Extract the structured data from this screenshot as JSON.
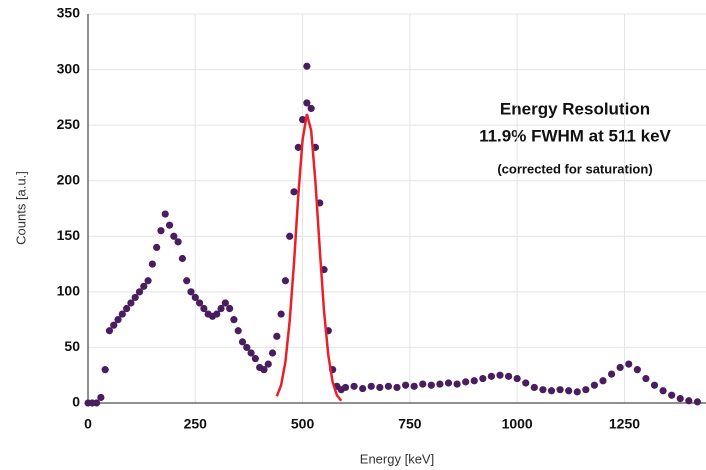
{
  "chart_data": {
    "type": "scatter",
    "xlabel": "Energy [keV]",
    "ylabel": "Counts [a.u.]",
    "annotations": [
      "Energy Resolution",
      "11.9% FWHM at 511 keV",
      "(corrected for saturation)"
    ],
    "xlim": [
      0,
      1440
    ],
    "ylim": [
      0,
      350
    ],
    "xticks": [
      0,
      250,
      500,
      750,
      1000,
      1250
    ],
    "yticks": [
      0,
      50,
      100,
      150,
      200,
      250,
      300,
      350
    ],
    "grid": true,
    "series": [
      {
        "type": "scatter",
        "color": "#4a1d5e",
        "x": [
          0,
          10,
          20,
          30,
          40,
          50,
          60,
          70,
          80,
          90,
          100,
          110,
          120,
          130,
          140,
          150,
          160,
          170,
          180,
          190,
          200,
          210,
          220,
          230,
          240,
          250,
          260,
          270,
          280,
          290,
          300,
          310,
          320,
          330,
          340,
          350,
          360,
          370,
          380,
          390,
          400,
          410,
          420,
          430,
          440,
          450,
          460,
          470,
          480,
          490,
          500,
          510,
          520,
          530,
          540,
          550,
          560,
          570,
          580,
          590,
          600,
          620,
          640,
          660,
          680,
          700,
          720,
          740,
          760,
          780,
          800,
          820,
          840,
          860,
          880,
          900,
          920,
          940,
          960,
          980,
          1000,
          1020,
          1040,
          1060,
          1080,
          1100,
          1120,
          1140,
          1160,
          1180,
          1200,
          1220,
          1240,
          1260,
          1280,
          1300,
          1320,
          1340,
          1360,
          1380,
          1400,
          1420,
          510
        ],
        "values": [
          0,
          0,
          0,
          5,
          30,
          65,
          70,
          75,
          80,
          85,
          90,
          95,
          100,
          105,
          110,
          125,
          140,
          155,
          170,
          160,
          150,
          145,
          130,
          110,
          100,
          95,
          90,
          85,
          80,
          78,
          80,
          85,
          90,
          85,
          75,
          65,
          55,
          50,
          45,
          40,
          32,
          30,
          35,
          45,
          60,
          80,
          110,
          150,
          190,
          230,
          255,
          270,
          265,
          230,
          180,
          120,
          65,
          30,
          15,
          12,
          14,
          15,
          13,
          15,
          14,
          15,
          14,
          16,
          15,
          17,
          16,
          17,
          18,
          17,
          19,
          20,
          22,
          24,
          25,
          24,
          22,
          18,
          14,
          12,
          11,
          12,
          11,
          10,
          12,
          16,
          20,
          26,
          32,
          35,
          30,
          22,
          16,
          11,
          7,
          4,
          2,
          1,
          303
        ]
      },
      {
        "type": "line",
        "color": "#e8202a",
        "x": [
          440,
          450,
          460,
          470,
          480,
          490,
          500,
          510,
          520,
          530,
          540,
          550,
          560,
          570,
          580,
          590
        ],
        "values": [
          6,
          16,
          37,
          74,
          126,
          187,
          237,
          260,
          245,
          198,
          138,
          83,
          43,
          19,
          7,
          2
        ]
      }
    ]
  }
}
